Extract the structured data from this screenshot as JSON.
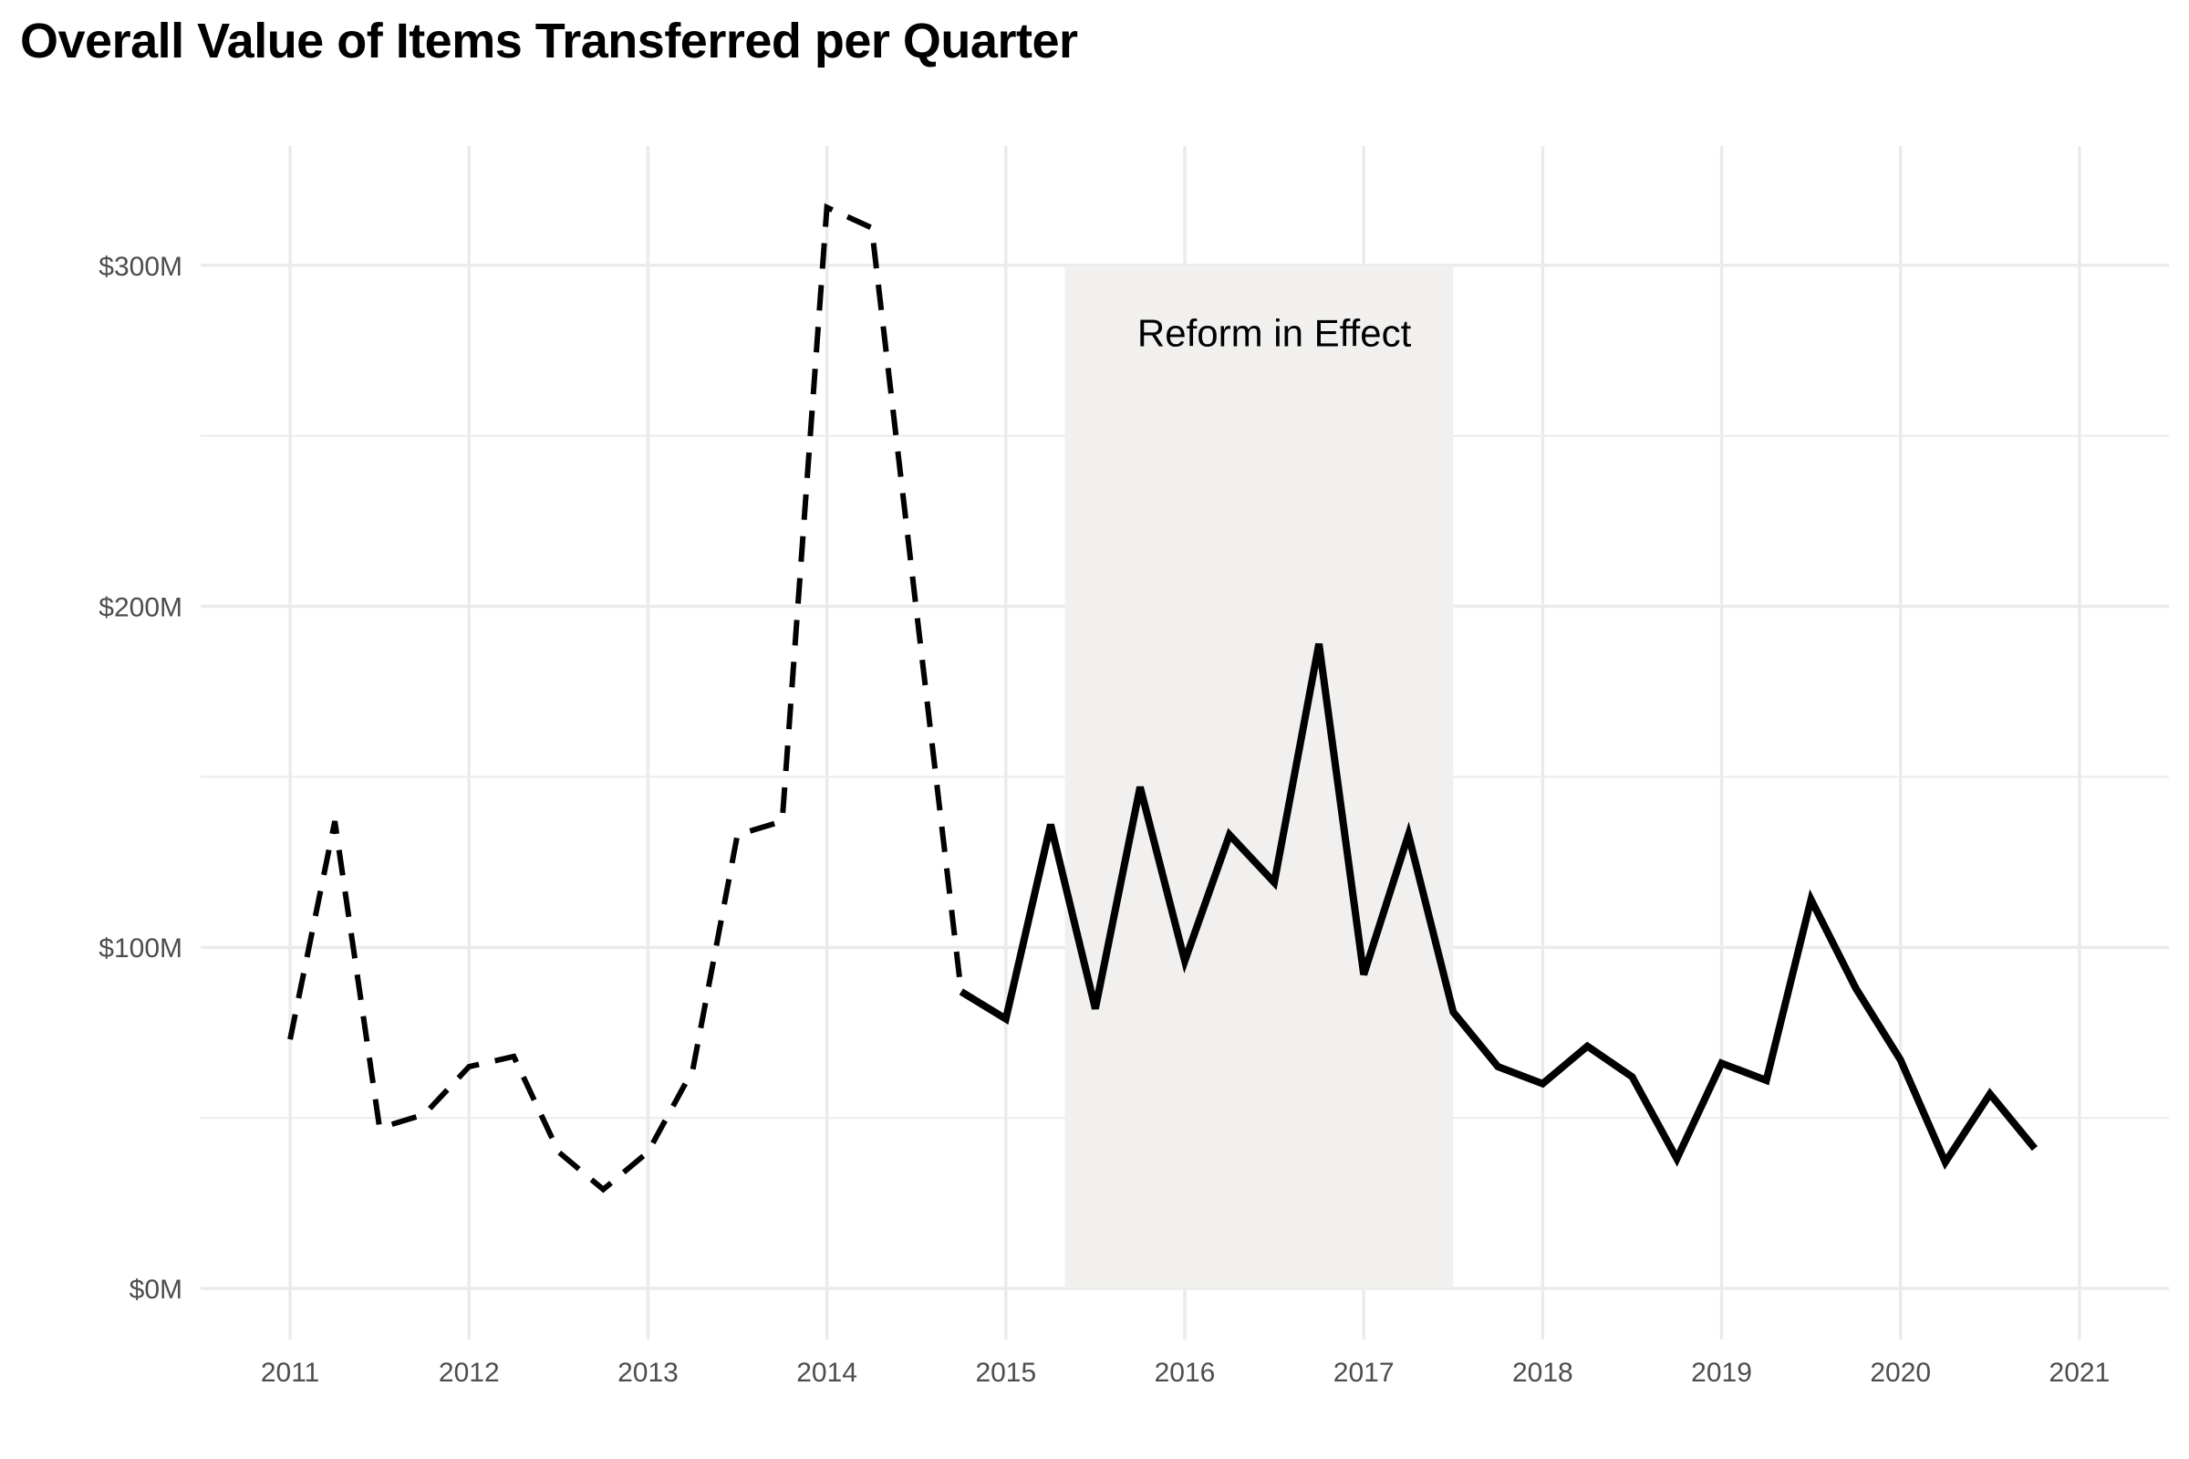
{
  "chart_data": {
    "type": "line",
    "title": "Overall Value of Items Transferred per Quarter",
    "xlabel": "",
    "ylabel": "",
    "xlim": [
      2010.5,
      2021.5
    ],
    "ylim": [
      -15,
      335
    ],
    "x_ticks": [
      2011,
      2012,
      2013,
      2014,
      2015,
      2016,
      2017,
      2018,
      2019,
      2020,
      2021
    ],
    "x_tick_labels": [
      "2011",
      "2012",
      "2013",
      "2014",
      "2015",
      "2016",
      "2017",
      "2018",
      "2019",
      "2020",
      "2021"
    ],
    "x_minor_ticks": [],
    "y_ticks": [
      0,
      100,
      200,
      300
    ],
    "y_tick_labels": [
      "$0M",
      "$100M",
      "$200M",
      "$300M"
    ],
    "y_minor_ticks": [
      50,
      150,
      250
    ],
    "grid": true,
    "colors": {
      "line": "#000000",
      "grid": "#ebebeb",
      "shade": "#f1f0ee",
      "tick_text": "#4d4d4d"
    },
    "shaded_region": {
      "x": [
        2015.33,
        2017.5
      ],
      "y": [
        0,
        300
      ],
      "label": "Reform in Effect",
      "label_x": 2016.5,
      "label_y": 280
    },
    "series": [
      {
        "style": "dashed",
        "x": [
          2011.0,
          2011.25,
          2011.5,
          2011.75,
          2012.0,
          2012.25,
          2012.5,
          2012.75,
          2013.0,
          2013.25,
          2013.5,
          2013.75,
          2014.0,
          2014.25,
          2014.5,
          2014.75
        ],
        "y": [
          73,
          137,
          47,
          51,
          65,
          68,
          40,
          29,
          40,
          64,
          133,
          137,
          317,
          311,
          199,
          87
        ]
      },
      {
        "style": "solid",
        "x": [
          2014.75,
          2015.0,
          2015.25,
          2015.5,
          2015.75,
          2016.0,
          2016.25,
          2016.5,
          2016.75,
          2017.0,
          2017.25,
          2017.5,
          2017.75,
          2018.0,
          2018.25,
          2018.5,
          2018.75,
          2019.0,
          2019.25,
          2019.5,
          2019.75,
          2020.0,
          2020.25,
          2020.5,
          2020.75
        ],
        "y": [
          87,
          79,
          136,
          82,
          147,
          96,
          133,
          119,
          189,
          92,
          133,
          81,
          65,
          60,
          71,
          62,
          38,
          66,
          61,
          114,
          88,
          67,
          37,
          57,
          41
        ]
      }
    ]
  }
}
